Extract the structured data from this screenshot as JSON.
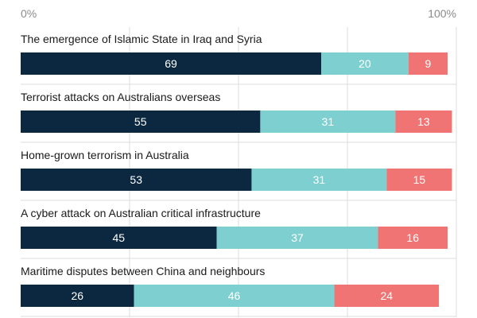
{
  "chart_data": {
    "type": "bar",
    "orientation": "horizontal",
    "stacked": true,
    "title": "",
    "xlabel": "",
    "ylabel": "",
    "xlim": [
      0,
      100
    ],
    "tick_labels": [
      "0%",
      "100%"
    ],
    "grid": true,
    "categories": [
      "The emergence of Islamic State in Iraq and Syria",
      "Terrorist attacks on Australians overseas",
      "Home-grown terrorism in Australia",
      "A cyber attack on Australian critical infrastructure",
      "Maritime disputes between China and neighbours"
    ],
    "series": [
      {
        "values": [
          69,
          55,
          53,
          45,
          26
        ],
        "color": "#0b2840",
        "label_color": "#ffffff"
      },
      {
        "values": [
          20,
          31,
          31,
          37,
          46
        ],
        "color": "#7dcfd0",
        "label_color": "#ffffff"
      },
      {
        "values": [
          9,
          13,
          15,
          16,
          24
        ],
        "color": "#f07474",
        "label_color": "#ffffff"
      }
    ]
  },
  "colors": {
    "axis_text": "#8a8a8a",
    "grid": "#dcdcdc",
    "separator": "#dcdcdc",
    "category_text": "#1a1a1a"
  }
}
